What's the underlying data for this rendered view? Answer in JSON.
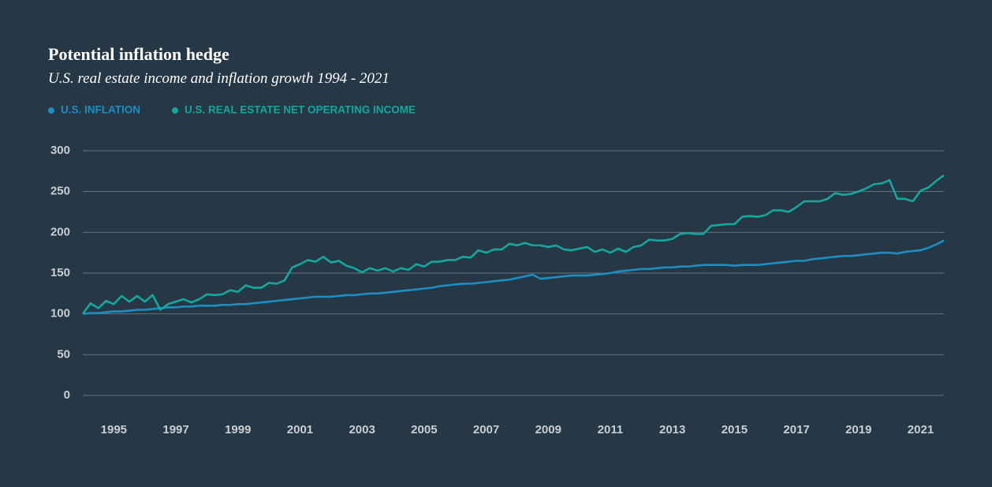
{
  "chart_data": {
    "type": "line",
    "title": "Potential inflation hedge",
    "subtitle": "U.S. real estate income and inflation growth 1994 - 2021",
    "x": [
      1994,
      1994.25,
      1994.5,
      1994.75,
      1995,
      1995.25,
      1995.5,
      1995.75,
      1996,
      1996.25,
      1996.5,
      1996.75,
      1997,
      1997.25,
      1997.5,
      1997.75,
      1998,
      1998.25,
      1998.5,
      1998.75,
      1999,
      1999.25,
      1999.5,
      1999.75,
      2000,
      2000.25,
      2000.5,
      2000.75,
      2001,
      2001.25,
      2001.5,
      2001.75,
      2002,
      2002.25,
      2002.5,
      2002.75,
      2003,
      2003.25,
      2003.5,
      2003.75,
      2004,
      2004.25,
      2004.5,
      2004.75,
      2005,
      2005.25,
      2005.5,
      2005.75,
      2006,
      2006.25,
      2006.5,
      2006.75,
      2007,
      2007.25,
      2007.5,
      2007.75,
      2008,
      2008.25,
      2008.5,
      2008.75,
      2009,
      2009.25,
      2009.5,
      2009.75,
      2010,
      2010.25,
      2010.5,
      2010.75,
      2011,
      2011.25,
      2011.5,
      2011.75,
      2012,
      2012.25,
      2012.5,
      2012.75,
      2013,
      2013.25,
      2013.5,
      2013.75,
      2014,
      2014.25,
      2014.5,
      2014.75,
      2015,
      2015.25,
      2015.5,
      2015.75,
      2016,
      2016.25,
      2016.5,
      2016.75,
      2017,
      2017.25,
      2017.5,
      2017.75,
      2018,
      2018.25,
      2018.5,
      2018.75,
      2019,
      2019.25,
      2019.5,
      2019.75,
      2020,
      2020.25,
      2020.5,
      2020.75,
      2021,
      2021.25,
      2021.5,
      2021.75
    ],
    "series": [
      {
        "name": "U.S. INFLATION",
        "color": "#1a8fc4",
        "values": [
          100,
          101,
          101,
          102,
          103,
          103,
          104,
          105,
          105,
          106,
          107,
          108,
          108,
          109,
          109,
          110,
          110,
          110,
          111,
          111,
          112,
          112,
          113,
          114,
          115,
          116,
          117,
          118,
          119,
          120,
          121,
          121,
          121,
          122,
          123,
          123,
          124,
          125,
          125,
          126,
          127,
          128,
          129,
          130,
          131,
          132,
          134,
          135,
          136,
          137,
          137,
          138,
          139,
          140,
          141,
          142,
          144,
          146,
          148,
          143,
          144,
          145,
          146,
          147,
          147,
          147,
          148,
          149,
          150,
          152,
          153,
          154,
          155,
          155,
          156,
          157,
          157,
          158,
          158,
          159,
          160,
          160,
          160,
          160,
          159,
          160,
          160,
          160,
          161,
          162,
          163,
          164,
          165,
          165,
          167,
          168,
          169,
          170,
          171,
          171,
          172,
          173,
          174,
          175,
          175,
          174,
          176,
          177,
          178,
          181,
          185,
          190
        ]
      },
      {
        "name": "U.S. REAL ESTATE NET OPERATING INCOME",
        "color": "#13a89e",
        "values": [
          100,
          113,
          107,
          116,
          112,
          122,
          115,
          122,
          115,
          123,
          105,
          112,
          115,
          118,
          114,
          118,
          124,
          123,
          124,
          129,
          127,
          135,
          132,
          132,
          138,
          137,
          141,
          157,
          161,
          166,
          164,
          170,
          163,
          165,
          159,
          156,
          151,
          156,
          153,
          156,
          152,
          156,
          154,
          161,
          158,
          164,
          164,
          166,
          166,
          170,
          169,
          178,
          175,
          179,
          179,
          186,
          184,
          187,
          184,
          184,
          182,
          184,
          179,
          178,
          180,
          182,
          176,
          179,
          175,
          180,
          176,
          182,
          184,
          191,
          190,
          190,
          192,
          198,
          199,
          198,
          198,
          208,
          209,
          210,
          210,
          219,
          220,
          219,
          221,
          227,
          227,
          225,
          231,
          238,
          238,
          238,
          241,
          248,
          246,
          247,
          250,
          254,
          259,
          260,
          264,
          241,
          241,
          238,
          251,
          255,
          263,
          270
        ]
      }
    ],
    "xlim": [
      1994,
      2021.75
    ],
    "xticks": [
      1995,
      1997,
      1999,
      2001,
      2003,
      2005,
      2007,
      2009,
      2011,
      2013,
      2015,
      2017,
      2019,
      2021
    ],
    "ylim": [
      0,
      300
    ],
    "yticks": [
      0,
      50,
      100,
      150,
      200,
      250,
      300
    ],
    "grid": true
  }
}
